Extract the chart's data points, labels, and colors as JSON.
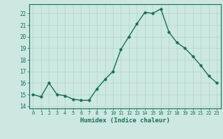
{
  "x": [
    0,
    1,
    2,
    3,
    4,
    5,
    6,
    7,
    8,
    9,
    10,
    11,
    12,
    13,
    14,
    15,
    16,
    17,
    18,
    19,
    20,
    21,
    22,
    23
  ],
  "y": [
    15.0,
    14.8,
    16.0,
    15.0,
    14.9,
    14.6,
    14.5,
    14.5,
    15.5,
    16.3,
    17.0,
    18.9,
    20.0,
    21.1,
    22.1,
    22.0,
    22.4,
    20.4,
    19.5,
    19.0,
    18.3,
    17.5,
    16.6,
    16.0
  ],
  "line_color": "#1a6b5a",
  "marker_color": "#1a6b5a",
  "bg_color": "#cce8e0",
  "grid_color": "#b0d4cc",
  "xlabel": "Humidex (Indice chaleur)",
  "ylabel_ticks": [
    14,
    15,
    16,
    17,
    18,
    19,
    20,
    21,
    22
  ],
  "xlim": [
    -0.5,
    23.5
  ],
  "ylim": [
    13.8,
    22.8
  ],
  "xtick_labels": [
    "0",
    "1",
    "2",
    "3",
    "4",
    "5",
    "6",
    "7",
    "8",
    "9",
    "10",
    "11",
    "12",
    "13",
    "14",
    "15",
    "16",
    "17",
    "18",
    "19",
    "20",
    "21",
    "22",
    "23"
  ],
  "title_color": "#1a6b5a",
  "font_name": "monospace",
  "linewidth": 1.0,
  "markersize": 2.5
}
